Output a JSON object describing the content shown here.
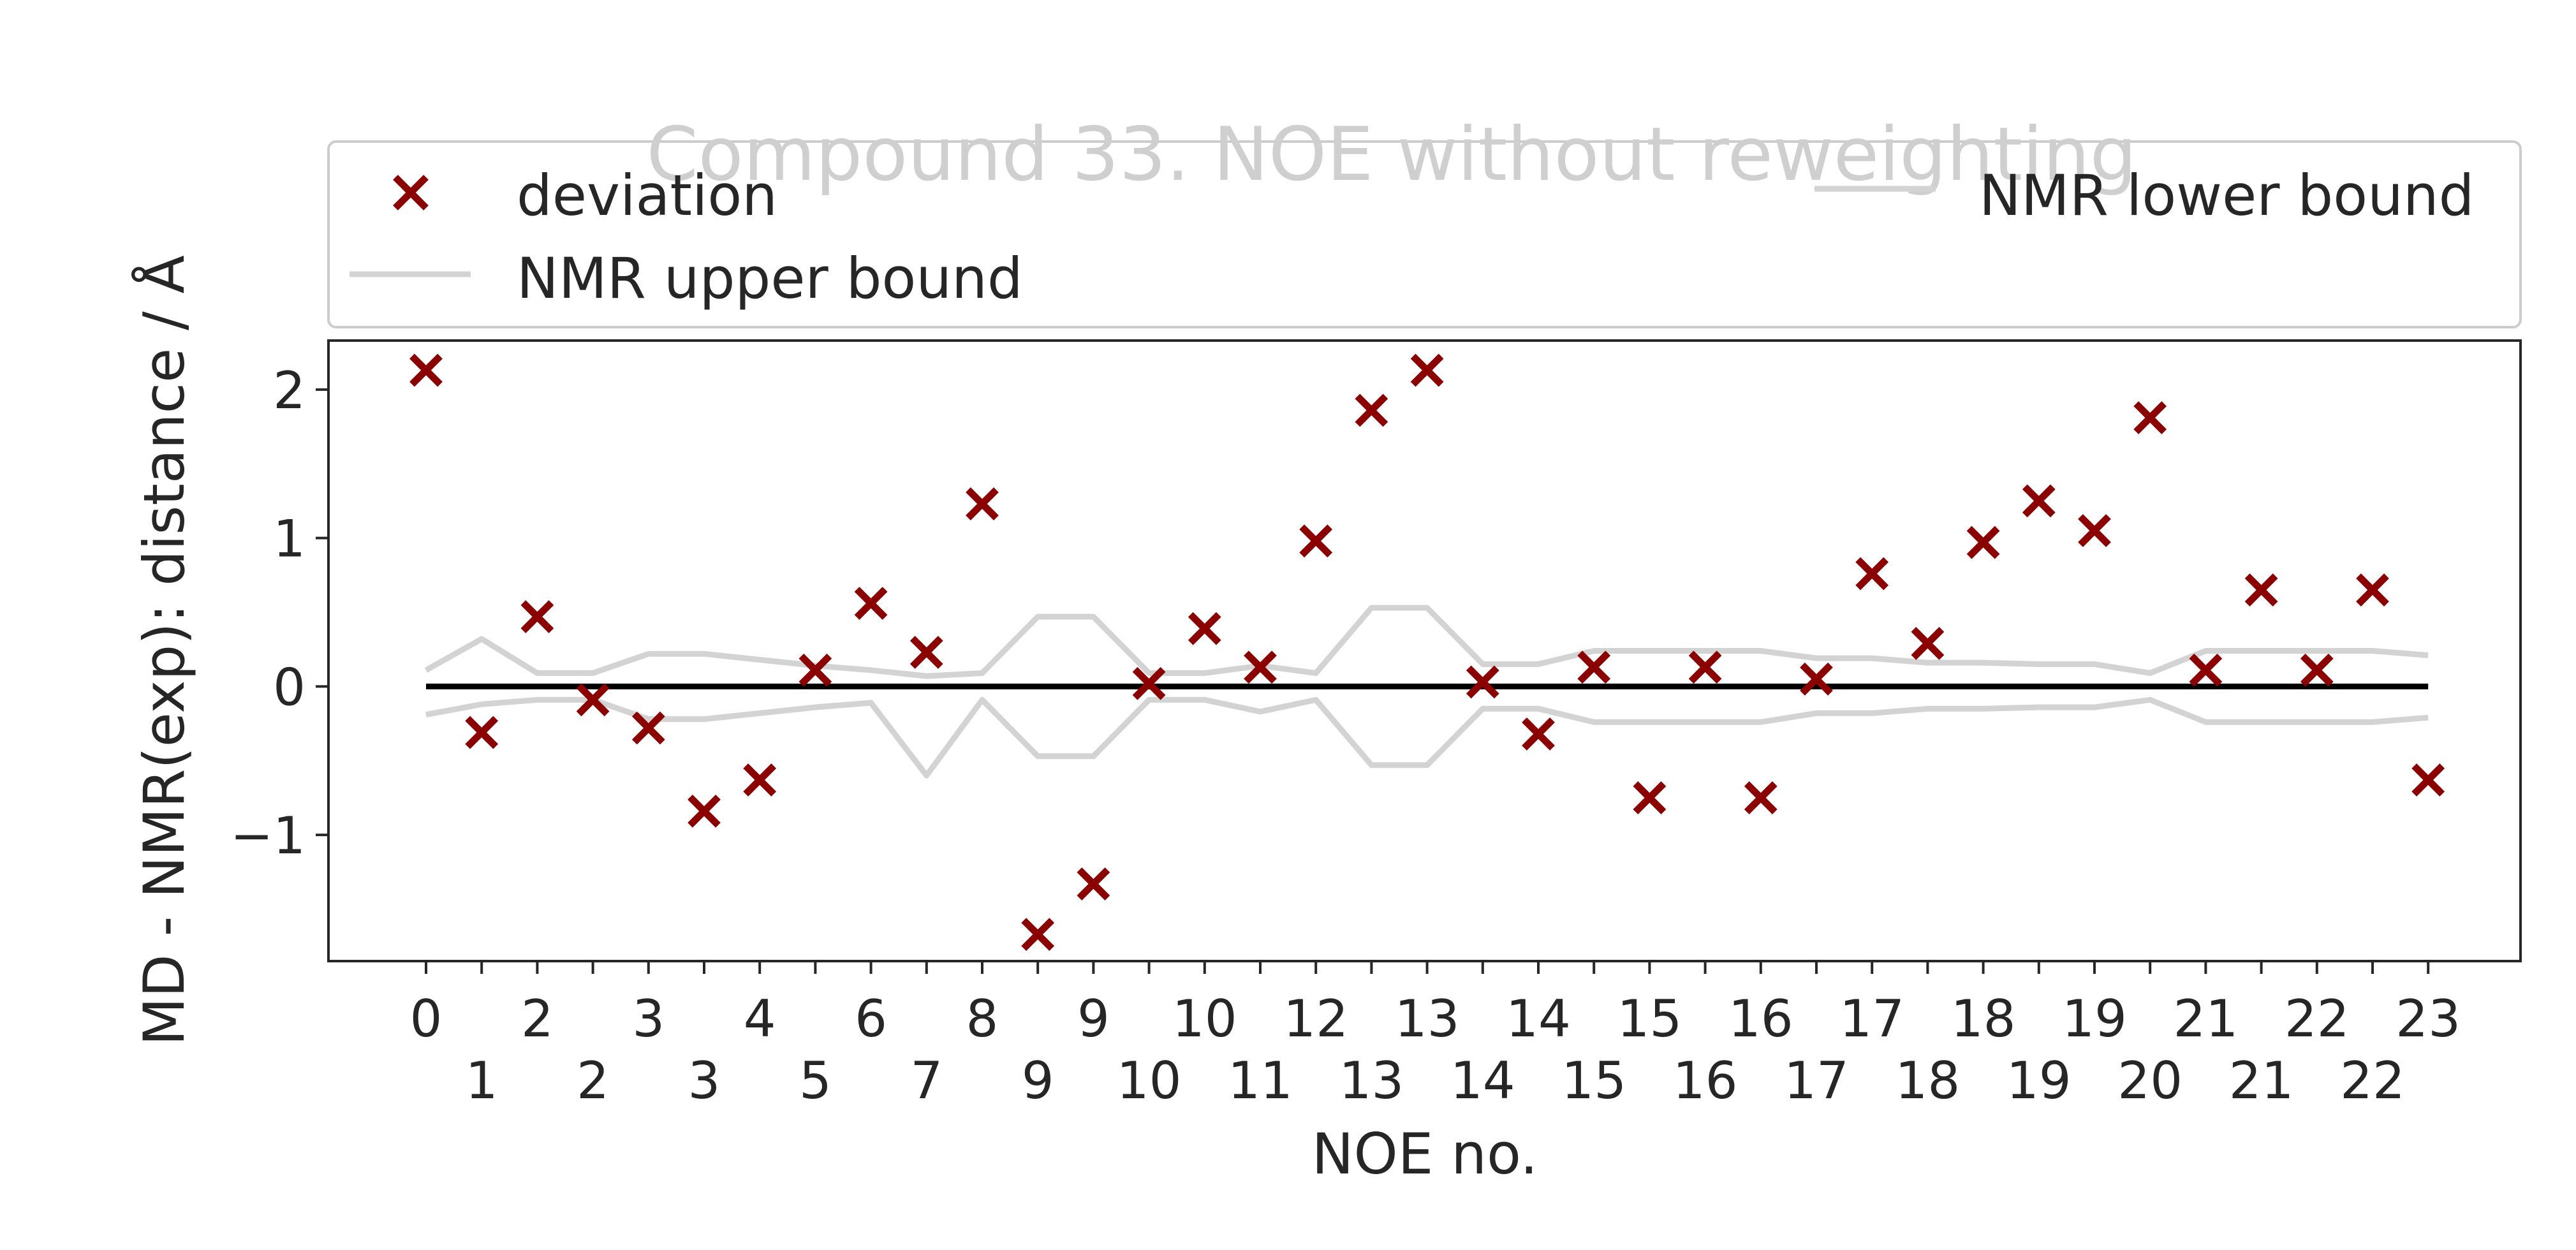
{
  "chart_data": {
    "type": "scatter",
    "title": "Compound 33. NOE without reweighting",
    "xlabel": "NOE no.",
    "ylabel": "MD - NMR(exp): distance / Å",
    "ylim": [
      -1.85,
      2.33
    ],
    "yticks": [
      -1,
      0,
      1,
      2
    ],
    "ytick_labels": [
      "−1",
      "0",
      "1",
      "2"
    ],
    "xtick_labels_top": [
      "0",
      "2",
      "3",
      "4",
      "6",
      "8",
      "9",
      "10",
      "12",
      "13",
      "14",
      "15",
      "16",
      "17",
      "18",
      "19",
      "21",
      "22",
      "23"
    ],
    "xtick_labels_bottom": [
      "1",
      "2",
      "3",
      "5",
      "7",
      "9",
      "10",
      "11",
      "13",
      "14",
      "15",
      "16",
      "17",
      "18",
      "19",
      "20",
      "21",
      "22"
    ],
    "x": [
      0,
      0.5,
      1,
      1.5,
      2,
      2.5,
      3,
      3.5,
      4,
      4.5,
      5,
      5.5,
      6,
      6.5,
      7,
      7.5,
      8,
      8.5,
      9,
      9.5,
      10,
      10.5,
      11,
      11.5,
      12,
      12.5,
      13,
      13.5,
      14,
      14.5,
      15,
      15.5,
      16,
      16.5,
      17,
      17.5,
      18
    ],
    "series": [
      {
        "name": "deviation",
        "kind": "scatter",
        "marker": "x",
        "color": "#8b0000",
        "values": [
          2.13,
          -0.31,
          0.47,
          -0.09,
          -0.28,
          -0.84,
          -0.63,
          0.11,
          0.56,
          0.23,
          1.23,
          -1.67,
          -1.33,
          0.02,
          0.39,
          0.13,
          0.98,
          1.86,
          2.13,
          0.03,
          -0.32,
          0.13,
          -0.75,
          0.13,
          -0.75,
          0.05,
          0.76,
          0.29,
          0.97,
          1.25,
          1.05,
          1.81,
          0.11,
          0.65,
          0.11,
          0.65,
          -0.63
        ]
      },
      {
        "name": "NMR upper bound",
        "kind": "line",
        "color": "#d3d3d3",
        "values": [
          0.11,
          0.32,
          0.09,
          0.09,
          0.22,
          0.22,
          0.18,
          0.14,
          0.11,
          0.07,
          0.09,
          0.47,
          0.47,
          0.09,
          0.09,
          0.14,
          0.09,
          0.53,
          0.53,
          0.15,
          0.15,
          0.24,
          0.24,
          0.24,
          0.24,
          0.19,
          0.19,
          0.16,
          0.16,
          0.15,
          0.15,
          0.09,
          0.24,
          0.24,
          0.24,
          0.24,
          0.21
        ]
      },
      {
        "name": "NMR lower bound",
        "kind": "line",
        "color": "#d3d3d3",
        "values": [
          -0.19,
          -0.12,
          -0.09,
          -0.09,
          -0.22,
          -0.22,
          -0.18,
          -0.14,
          -0.11,
          -0.6,
          -0.09,
          -0.47,
          -0.47,
          -0.09,
          -0.09,
          -0.17,
          -0.09,
          -0.53,
          -0.53,
          -0.15,
          -0.15,
          -0.24,
          -0.24,
          -0.24,
          -0.24,
          -0.18,
          -0.18,
          -0.15,
          -0.15,
          -0.14,
          -0.14,
          -0.09,
          -0.24,
          -0.24,
          -0.24,
          -0.24,
          -0.21
        ]
      }
    ],
    "reference_line": {
      "y": 0,
      "color": "#000000"
    },
    "legend": {
      "placement": "top",
      "entries": [
        "deviation",
        "NMR lower bound",
        "NMR upper bound"
      ]
    },
    "grid": false
  }
}
